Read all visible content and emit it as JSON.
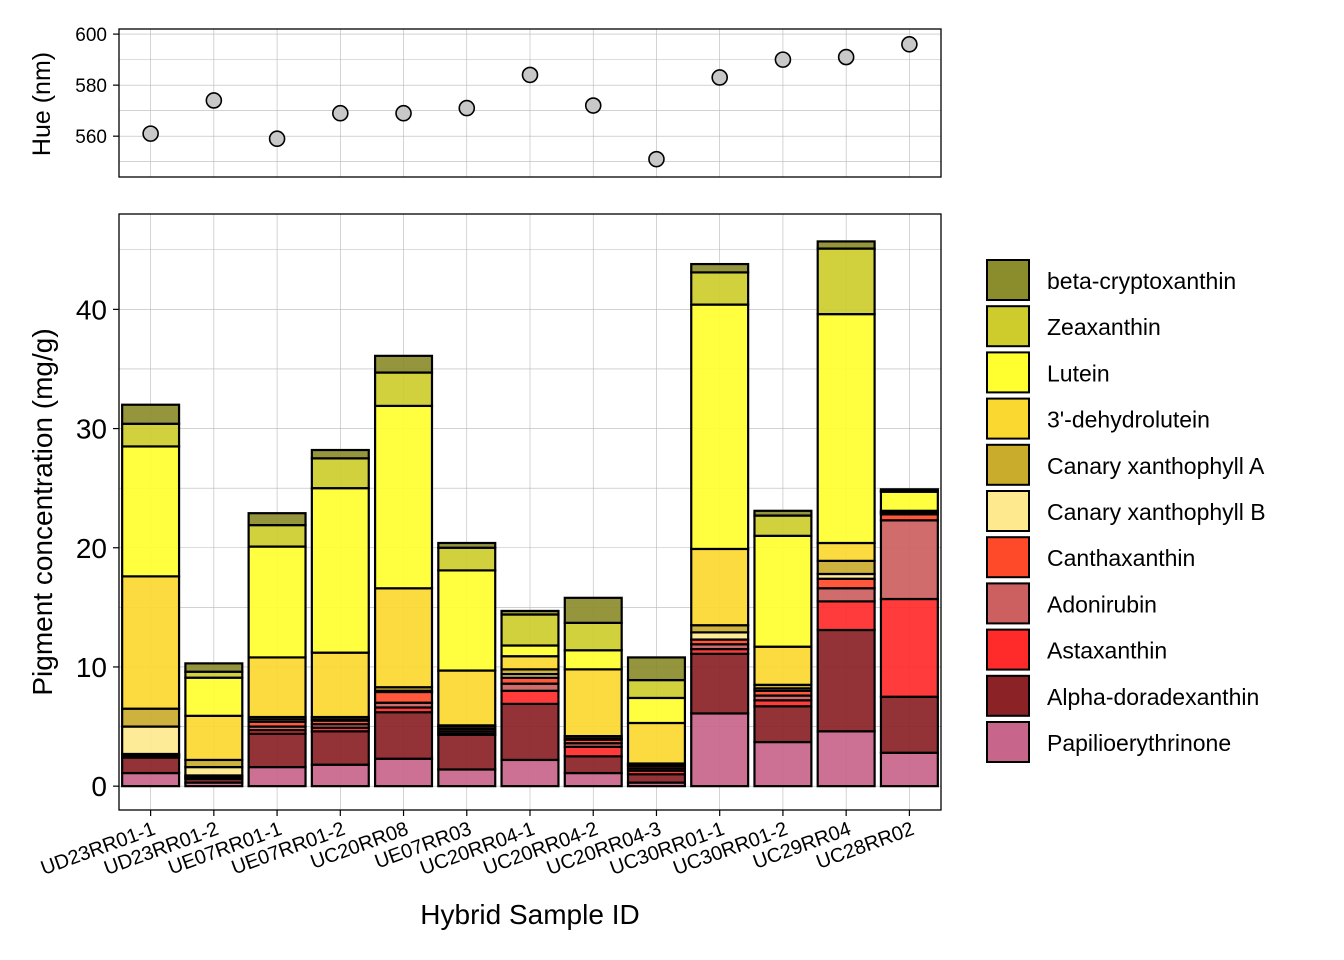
{
  "chart_data": [
    {
      "type": "scatter",
      "ylabel": "Hue (nm)",
      "ylim": [
        544,
        602
      ],
      "yticks": [
        560,
        580,
        600
      ],
      "grid": true,
      "point_fill": "#c8c8c8",
      "x": [
        "UD23RR01-1",
        "UD23RR01-2",
        "UE07RR01-1",
        "UE07RR01-2",
        "UC20RR08",
        "UE07RR03",
        "UC20RR04-1",
        "UC20RR04-2",
        "UC20RR04-3",
        "UC30RR01-1",
        "UC30RR01-2",
        "UC29RR04",
        "UC28RR02"
      ],
      "y": [
        561,
        574,
        559,
        569,
        569,
        571,
        584,
        572,
        551,
        583,
        590,
        591,
        596
      ]
    },
    {
      "type": "bar",
      "stacked": true,
      "xlabel": "Hybrid Sample ID",
      "ylabel": "Pigment concentration (mg/g)",
      "ylim": [
        -2,
        48
      ],
      "yticks": [
        0,
        10,
        20,
        30,
        40
      ],
      "grid": true,
      "legend_position": "right",
      "categories": [
        "UD23RR01-1",
        "UD23RR01-2",
        "UE07RR01-1",
        "UE07RR01-2",
        "UC20RR08",
        "UE07RR03",
        "UC20RR04-1",
        "UC20RR04-2",
        "UC20RR04-3",
        "UC30RR01-1",
        "UC30RR01-2",
        "UC29RR04",
        "UC28RR02"
      ],
      "series": [
        {
          "name": "Papilioerythrinone",
          "color": "#c8658a",
          "values": [
            1.1,
            0.3,
            1.6,
            1.8,
            2.3,
            1.4,
            2.2,
            1.1,
            0.3,
            6.1,
            3.7,
            4.6,
            2.8
          ]
        },
        {
          "name": "Alpha-doradexanthin",
          "color": "#8b2226",
          "values": [
            1.3,
            0.3,
            2.8,
            2.8,
            3.9,
            2.9,
            4.7,
            1.4,
            0.7,
            5.0,
            3.0,
            8.5,
            4.7
          ]
        },
        {
          "name": "Astaxanthin",
          "color": "#ff2a2a",
          "values": [
            0.1,
            0.1,
            0.3,
            0.3,
            0.4,
            0.1,
            1.1,
            0.8,
            0.3,
            0.4,
            0.5,
            2.4,
            8.2
          ]
        },
        {
          "name": "Adonirubin",
          "color": "#cc5f5f",
          "values": [
            0.1,
            0.1,
            0.3,
            0.3,
            0.4,
            0.2,
            0.6,
            0.3,
            0.2,
            0.4,
            0.4,
            1.1,
            6.6
          ]
        },
        {
          "name": "Canthaxanthin",
          "color": "#ff4a2a",
          "values": [
            0.1,
            0.1,
            0.4,
            0.3,
            0.9,
            0.2,
            0.5,
            0.3,
            0.2,
            0.4,
            0.4,
            0.8,
            0.5
          ]
        },
        {
          "name": "Canary xanthophyll B",
          "color": "#fee98e",
          "values": [
            2.3,
            0.7,
            0.2,
            0.1,
            0.1,
            0.2,
            0.3,
            0.1,
            0.1,
            0.6,
            0.2,
            0.4,
            0.1
          ]
        },
        {
          "name": "Canary xanthophyll A",
          "color": "#c9ac2c",
          "values": [
            1.5,
            0.6,
            0.2,
            0.2,
            0.3,
            0.1,
            0.4,
            0.2,
            0.1,
            0.6,
            0.3,
            1.1,
            0.1
          ]
        },
        {
          "name": "3'-dehydrolutein",
          "color": "#fbd830",
          "values": [
            11.1,
            3.7,
            5.0,
            5.4,
            8.3,
            4.6,
            1.1,
            5.6,
            3.4,
            6.4,
            3.2,
            1.5,
            0.1
          ]
        },
        {
          "name": "Lutein",
          "color": "#ffff30",
          "values": [
            10.9,
            3.2,
            9.3,
            13.8,
            15.3,
            8.4,
            0.9,
            1.6,
            2.1,
            20.5,
            9.3,
            19.2,
            1.6
          ]
        },
        {
          "name": "Zeaxanthin",
          "color": "#cdcc2c",
          "values": [
            1.9,
            0.5,
            1.8,
            2.5,
            2.8,
            1.9,
            2.6,
            2.3,
            1.5,
            2.7,
            1.7,
            5.5,
            0.1
          ]
        },
        {
          "name": "beta-cryptoxanthin",
          "color": "#8b8c2c",
          "values": [
            1.6,
            0.7,
            1.0,
            0.7,
            1.4,
            0.4,
            0.3,
            2.1,
            1.9,
            0.7,
            0.4,
            0.6,
            0.1
          ]
        }
      ]
    }
  ]
}
